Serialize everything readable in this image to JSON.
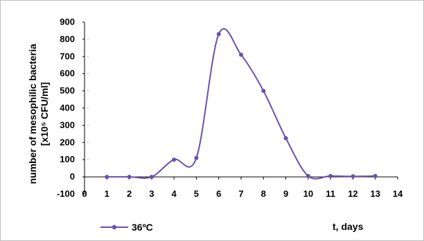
{
  "chart_data": {
    "type": "line",
    "title": "",
    "x": [
      1,
      2,
      3,
      4,
      5,
      6,
      7,
      8,
      9,
      10,
      11,
      12,
      13
    ],
    "series": [
      {
        "name": "36ºC",
        "color": "#6a4fb0",
        "values": [
          0,
          0,
          0,
          100,
          110,
          830,
          710,
          500,
          225,
          5,
          5,
          3,
          5
        ]
      }
    ],
    "xlim": [
      0,
      14
    ],
    "ylim": [
      -100,
      900
    ],
    "xticks": [
      0,
      1,
      2,
      3,
      4,
      5,
      6,
      7,
      8,
      9,
      10,
      11,
      12,
      13,
      14
    ],
    "yticks": [
      -100,
      0,
      100,
      200,
      300,
      400,
      500,
      600,
      700,
      800,
      900
    ],
    "ylabel_line1": "number of mesophilic bacteria",
    "ylabel_line2": "[x10⁵ CFU/ml]",
    "xlabel": "t, days",
    "grid": false,
    "legend_position": "bottom-left",
    "smooth": true
  }
}
